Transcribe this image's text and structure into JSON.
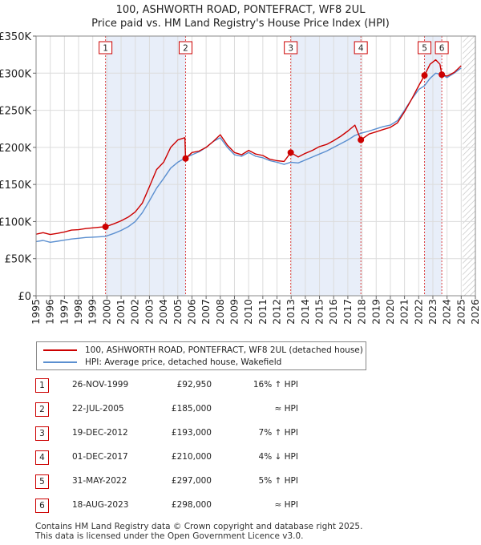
{
  "chart_data": {
    "type": "line",
    "title": "100, ASHWORTH ROAD, PONTEFRACT, WF8 2UL",
    "subtitle": "Price paid vs. HM Land Registry's House Price Index (HPI)",
    "xlim": [
      1995,
      2026
    ],
    "ylim": [
      0,
      350000
    ],
    "y_ticks": [
      0,
      50000,
      100000,
      150000,
      200000,
      250000,
      300000,
      350000
    ],
    "y_tick_labels": [
      "£0",
      "£50K",
      "£100K",
      "£150K",
      "£200K",
      "£250K",
      "£300K",
      "£350K"
    ],
    "x_ticks": [
      1995,
      1996,
      1997,
      1998,
      1999,
      2000,
      2001,
      2002,
      2003,
      2004,
      2005,
      2006,
      2007,
      2008,
      2009,
      2010,
      2011,
      2012,
      2013,
      2014,
      2015,
      2016,
      2017,
      2018,
      2019,
      2020,
      2021,
      2022,
      2023,
      2024,
      2025,
      2026
    ],
    "x_tick_labels": [
      "1995",
      "1996",
      "1997",
      "1998",
      "1999",
      "2000",
      "2001",
      "2002",
      "2003",
      "2004",
      "2005",
      "2006",
      "2007",
      "2008",
      "2009",
      "2010",
      "2011",
      "2012",
      "2013",
      "2014",
      "2015",
      "2016",
      "2017",
      "2018",
      "2019",
      "2020",
      "2021",
      "2022",
      "2023",
      "2024",
      "2025",
      "2026"
    ],
    "grid": true,
    "shaded_periods": [
      [
        1999.9,
        2005.55
      ],
      [
        2012.97,
        2017.92
      ],
      [
        2022.41,
        2023.63
      ]
    ],
    "future_hatch_from": 2025.1,
    "series": [
      {
        "name": "100, ASHWORTH ROAD, PONTEFRACT, WF8 2UL (detached house)",
        "color": "#cc0000",
        "points": [
          [
            1995.0,
            83000
          ],
          [
            1995.5,
            85000
          ],
          [
            1996.0,
            82500
          ],
          [
            1996.5,
            84000
          ],
          [
            1997.0,
            86000
          ],
          [
            1997.5,
            88500
          ],
          [
            1998.0,
            89000
          ],
          [
            1998.5,
            90500
          ],
          [
            1999.0,
            91500
          ],
          [
            1999.5,
            92500
          ],
          [
            1999.9,
            92950
          ],
          [
            2000.5,
            97000
          ],
          [
            2001.0,
            101000
          ],
          [
            2001.5,
            106000
          ],
          [
            2002.0,
            113000
          ],
          [
            2002.5,
            125000
          ],
          [
            2003.0,
            147000
          ],
          [
            2003.5,
            170000
          ],
          [
            2004.0,
            180000
          ],
          [
            2004.5,
            200000
          ],
          [
            2005.0,
            210000
          ],
          [
            2005.5,
            213000
          ],
          [
            2005.55,
            185000
          ],
          [
            2006.0,
            193000
          ],
          [
            2006.5,
            195000
          ],
          [
            2007.0,
            200000
          ],
          [
            2007.5,
            208000
          ],
          [
            2008.0,
            217000
          ],
          [
            2008.5,
            203000
          ],
          [
            2009.0,
            193000
          ],
          [
            2009.5,
            190000
          ],
          [
            2010.0,
            196000
          ],
          [
            2010.5,
            191000
          ],
          [
            2011.0,
            189000
          ],
          [
            2011.5,
            184000
          ],
          [
            2012.0,
            182000
          ],
          [
            2012.5,
            181000
          ],
          [
            2012.97,
            193000
          ],
          [
            2013.5,
            187000
          ],
          [
            2014.0,
            192000
          ],
          [
            2014.5,
            196000
          ],
          [
            2015.0,
            201000
          ],
          [
            2015.5,
            204000
          ],
          [
            2016.0,
            209000
          ],
          [
            2016.5,
            215000
          ],
          [
            2017.0,
            222000
          ],
          [
            2017.5,
            230000
          ],
          [
            2017.92,
            210000
          ],
          [
            2018.5,
            218000
          ],
          [
            2019.0,
            221000
          ],
          [
            2019.5,
            224000
          ],
          [
            2020.0,
            227000
          ],
          [
            2020.5,
            233000
          ],
          [
            2021.0,
            248000
          ],
          [
            2021.5,
            265000
          ],
          [
            2022.0,
            283000
          ],
          [
            2022.41,
            297000
          ],
          [
            2022.8,
            312000
          ],
          [
            2023.2,
            318000
          ],
          [
            2023.5,
            312000
          ],
          [
            2023.63,
            298000
          ],
          [
            2024.0,
            296000
          ],
          [
            2024.5,
            301000
          ],
          [
            2025.0,
            310000
          ]
        ]
      },
      {
        "name": "HPI: Average price, detached house, Wakefield",
        "color": "#5b8fd0",
        "points": [
          [
            1995.0,
            73000
          ],
          [
            1995.5,
            74500
          ],
          [
            1996.0,
            72000
          ],
          [
            1996.5,
            73500
          ],
          [
            1997.0,
            75000
          ],
          [
            1997.5,
            76500
          ],
          [
            1998.0,
            77500
          ],
          [
            1998.5,
            78500
          ],
          [
            1999.0,
            79000
          ],
          [
            1999.5,
            79500
          ],
          [
            1999.9,
            80000
          ],
          [
            2000.5,
            84000
          ],
          [
            2001.0,
            88000
          ],
          [
            2001.5,
            93000
          ],
          [
            2002.0,
            100000
          ],
          [
            2002.5,
            112000
          ],
          [
            2003.0,
            128000
          ],
          [
            2003.5,
            145000
          ],
          [
            2004.0,
            158000
          ],
          [
            2004.5,
            172000
          ],
          [
            2005.0,
            180000
          ],
          [
            2005.55,
            186000
          ],
          [
            2006.0,
            190000
          ],
          [
            2006.5,
            194000
          ],
          [
            2007.0,
            200000
          ],
          [
            2007.5,
            208000
          ],
          [
            2008.0,
            213000
          ],
          [
            2008.5,
            200000
          ],
          [
            2009.0,
            190000
          ],
          [
            2009.5,
            188000
          ],
          [
            2010.0,
            193000
          ],
          [
            2010.5,
            188000
          ],
          [
            2011.0,
            186000
          ],
          [
            2011.5,
            182000
          ],
          [
            2012.0,
            180000
          ],
          [
            2012.5,
            177000
          ],
          [
            2012.97,
            180000
          ],
          [
            2013.5,
            179000
          ],
          [
            2014.0,
            183000
          ],
          [
            2014.5,
            187000
          ],
          [
            2015.0,
            191000
          ],
          [
            2015.5,
            195000
          ],
          [
            2016.0,
            200000
          ],
          [
            2016.5,
            205000
          ],
          [
            2017.0,
            210000
          ],
          [
            2017.5,
            216000
          ],
          [
            2017.92,
            219000
          ],
          [
            2018.5,
            222000
          ],
          [
            2019.0,
            225000
          ],
          [
            2019.5,
            228000
          ],
          [
            2020.0,
            230000
          ],
          [
            2020.5,
            236000
          ],
          [
            2021.0,
            250000
          ],
          [
            2021.5,
            265000
          ],
          [
            2022.0,
            278000
          ],
          [
            2022.41,
            283000
          ],
          [
            2022.8,
            293000
          ],
          [
            2023.2,
            300000
          ],
          [
            2023.63,
            298000
          ],
          [
            2024.0,
            294000
          ],
          [
            2024.5,
            300000
          ],
          [
            2025.0,
            307000
          ]
        ]
      }
    ],
    "sales": [
      {
        "n": "1",
        "x": 1999.9,
        "y": 92950
      },
      {
        "n": "2",
        "x": 2005.55,
        "y": 185000
      },
      {
        "n": "3",
        "x": 2012.97,
        "y": 193000
      },
      {
        "n": "4",
        "x": 2017.92,
        "y": 210000
      },
      {
        "n": "5",
        "x": 2022.41,
        "y": 297000
      },
      {
        "n": "6",
        "x": 2023.63,
        "y": 298000
      }
    ]
  },
  "legend": {
    "property_label": "100, ASHWORTH ROAD, PONTEFRACT, WF8 2UL (detached house)",
    "hpi_label": "HPI: Average price, detached house, Wakefield",
    "property_color": "#cc0000",
    "hpi_color": "#5b8fd0"
  },
  "sales_table": [
    {
      "n": "1",
      "date": "26-NOV-1999",
      "price": "£92,950",
      "hpi": "16% ↑ HPI"
    },
    {
      "n": "2",
      "date": "22-JUL-2005",
      "price": "£185,000",
      "hpi": "≈ HPI"
    },
    {
      "n": "3",
      "date": "19-DEC-2012",
      "price": "£193,000",
      "hpi": "7% ↑ HPI"
    },
    {
      "n": "4",
      "date": "01-DEC-2017",
      "price": "£210,000",
      "hpi": "4% ↓ HPI"
    },
    {
      "n": "5",
      "date": "31-MAY-2022",
      "price": "£297,000",
      "hpi": "5% ↑ HPI"
    },
    {
      "n": "6",
      "date": "18-AUG-2023",
      "price": "£298,000",
      "hpi": "≈ HPI"
    }
  ],
  "footer": {
    "line1": "Contains HM Land Registry data © Crown copyright and database right 2025.",
    "line2": "This data is licensed under the Open Government Licence v3.0."
  }
}
